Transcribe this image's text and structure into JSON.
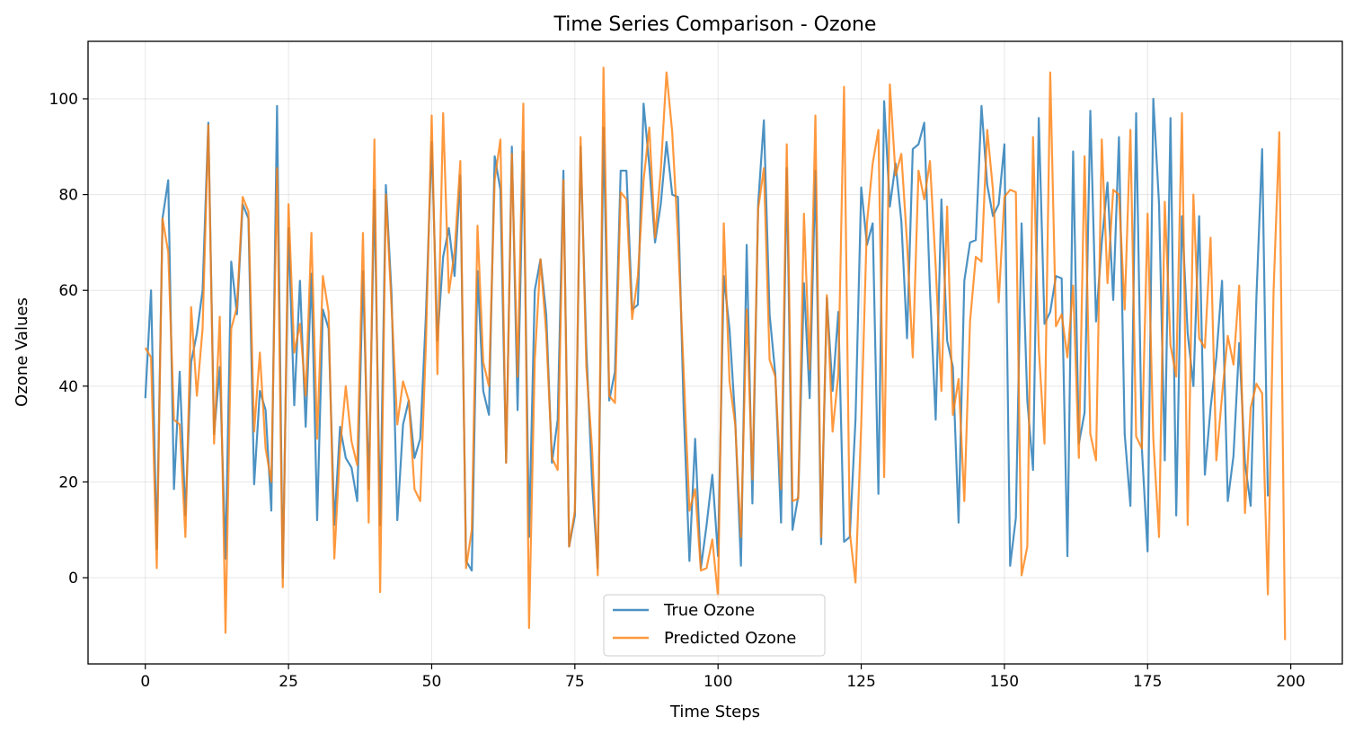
{
  "chart_data": {
    "type": "line",
    "title": "Time Series Comparison - Ozone",
    "xlabel": "Time Steps",
    "ylabel": "Ozone Values",
    "xlim": [
      -10,
      209
    ],
    "ylim": [
      -18,
      112
    ],
    "xticks": [
      0,
      25,
      50,
      75,
      100,
      125,
      150,
      175,
      200
    ],
    "yticks": [
      0,
      20,
      40,
      60,
      80,
      100
    ],
    "grid": true,
    "legend_position": "bottom-center",
    "series": [
      {
        "name": "True Ozone",
        "color": "#1f77b4",
        "x_start": 0,
        "x_step": 1,
        "values": [
          37.5,
          60,
          6,
          75,
          83,
          18.5,
          43,
          13,
          45,
          51,
          60,
          95,
          30,
          44,
          4,
          66,
          55,
          78,
          75,
          19.5,
          39,
          35,
          14,
          98.5,
          0,
          73,
          36,
          62,
          31.5,
          63.5,
          12,
          56,
          52,
          11,
          31.5,
          25,
          23,
          16,
          64,
          18.5,
          81,
          11,
          82,
          59,
          12,
          32,
          37,
          25,
          29,
          55,
          91,
          49.5,
          67,
          73,
          63,
          84,
          3.5,
          1.5,
          64,
          39,
          34,
          88,
          81,
          24,
          90,
          35,
          89,
          8.5,
          60,
          66.5,
          55,
          24,
          33,
          85,
          6.5,
          13,
          90,
          48,
          20,
          2,
          94,
          37,
          43,
          85,
          85,
          56,
          57,
          99,
          86,
          70,
          78,
          91,
          80,
          79.5,
          35,
          3.5,
          29,
          2,
          11,
          21.5,
          4.5,
          63,
          52,
          33,
          2.5,
          69.5,
          15.5,
          78,
          95.5,
          55,
          42.5,
          11.5,
          85.5,
          10,
          17,
          61.5,
          37.5,
          85,
          7,
          58.5,
          39,
          55.5,
          7.5,
          8.5,
          33,
          81.5,
          69.5,
          74,
          17.5,
          99.5,
          77.5,
          86.5,
          74.5,
          50,
          89.5,
          90.5,
          95,
          60,
          33,
          79,
          49.5,
          44,
          11.5,
          62,
          70,
          70.5,
          98.5,
          82,
          75.5,
          78,
          90.5,
          2.5,
          12.5,
          74,
          37,
          22.5,
          96,
          53,
          55.5,
          63,
          62.5,
          4.5,
          89,
          28,
          34.5,
          97.5,
          53.5,
          70,
          82.5,
          58,
          92,
          30,
          15,
          97,
          27,
          5.5,
          100,
          78,
          24.5,
          96,
          13,
          75.5,
          51,
          40,
          75.5,
          21.5,
          35.5,
          46,
          62,
          16,
          25.5,
          49,
          24,
          15,
          58.5,
          89.5,
          17
        ]
      },
      {
        "name": "Predicted Ozone",
        "color": "#ff7f0e",
        "x_start": 0,
        "x_step": 1,
        "values": [
          48,
          46,
          2,
          75,
          68,
          33,
          32,
          8.5,
          56.5,
          38,
          52,
          94.5,
          28,
          54.5,
          -11.5,
          52,
          56.5,
          79.5,
          76.5,
          30.5,
          47,
          27,
          20,
          85.5,
          -2,
          78,
          47,
          53,
          38,
          72,
          29,
          63,
          55.5,
          4,
          27,
          40,
          28.5,
          23.5,
          72,
          11.5,
          91.5,
          -3,
          80,
          56.5,
          32,
          41,
          37,
          18.5,
          16,
          49,
          96.5,
          42.5,
          97,
          59.5,
          68,
          87,
          2,
          10,
          73.5,
          45,
          40,
          83,
          91.5,
          24,
          88.5,
          42,
          99,
          -10.5,
          45.5,
          66.5,
          51,
          25,
          22.5,
          83,
          6.5,
          14,
          92,
          44,
          27,
          0.5,
          106.5,
          38,
          36.5,
          80.5,
          79,
          54,
          63,
          83,
          94,
          71,
          85,
          105.5,
          93,
          71,
          43,
          14,
          18.5,
          1.5,
          2,
          8,
          -4,
          74,
          41,
          32,
          8.5,
          56,
          20.5,
          77,
          85.5,
          45.5,
          42,
          18.5,
          90.5,
          16,
          16.5,
          76,
          43.5,
          96.5,
          8.5,
          59,
          30.5,
          42.5,
          102.5,
          9.5,
          -1,
          32,
          74,
          86.5,
          93.5,
          21,
          103,
          84,
          88.5,
          70,
          46,
          85,
          79,
          87,
          65,
          39,
          77.5,
          34,
          41.5,
          16,
          53.5,
          67,
          66,
          93.5,
          81,
          57.5,
          79.5,
          81,
          80.5,
          0.5,
          6.5,
          92,
          48,
          28,
          105.5,
          52.5,
          55,
          46,
          61,
          25,
          88,
          30,
          24.5,
          91.5,
          61.5,
          81,
          80,
          56,
          93.5,
          29.5,
          27,
          76,
          29,
          8.5,
          78.5,
          48.5,
          42,
          97,
          11,
          80,
          50,
          48,
          71,
          24.5,
          38,
          50.5,
          44.5,
          61,
          13.5,
          35.5,
          40.5,
          38.5,
          -3.5,
          60,
          93,
          -13
        ]
      }
    ]
  }
}
